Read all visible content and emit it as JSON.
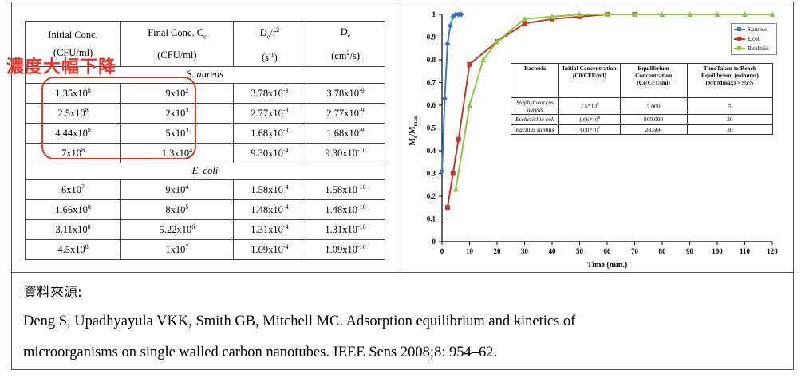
{
  "annotation": {
    "label": "濃度大幅下降",
    "color": "#e8332a"
  },
  "left_table": {
    "headers": [
      {
        "line1": "Initial Conc.",
        "line2": "(CFU/ml)"
      },
      {
        "line1": "Final Conc. C",
        "line1_sub": "e",
        "line2": "(CFU/ml)"
      },
      {
        "line1": "D",
        "line1_sub": "e",
        "line1_rest": "/r",
        "line1_sup": "2",
        "line2": "(s",
        "line2_sup": "-1",
        "line2_rest": ")"
      },
      {
        "line1": "D",
        "line1_sub": "e",
        "line2": "(cm",
        "line2_sup": "2",
        "line2_rest": "/s)"
      }
    ],
    "sections": [
      {
        "name": "S. aureus",
        "rows": [
          {
            "initial": [
              "1.35x10",
              "8"
            ],
            "final": [
              "9x10",
              "2"
            ],
            "der2": [
              "3.78x10",
              "-3"
            ],
            "de": [
              "3.78x10",
              "-9"
            ]
          },
          {
            "initial": [
              "2.5x10",
              "8"
            ],
            "final": [
              "2x10",
              "3"
            ],
            "der2": [
              "2.77x10",
              "-3"
            ],
            "de": [
              "2.77x10",
              "-9"
            ]
          },
          {
            "initial": [
              "4.44x10",
              "8"
            ],
            "final": [
              "5x10",
              "3"
            ],
            "der2": [
              "1.68x10",
              "-3"
            ],
            "de": [
              "1.68x10",
              "-9"
            ]
          },
          {
            "initial": [
              "7x10",
              "8"
            ],
            "final": [
              "1.3x10",
              "4"
            ],
            "der2": [
              "9.30x10",
              "-4"
            ],
            "de": [
              "9.30x10",
              "-10"
            ]
          }
        ]
      },
      {
        "name": "E. coli",
        "rows": [
          {
            "initial": [
              "6x10",
              "7"
            ],
            "final": [
              "9x10",
              "4"
            ],
            "der2": [
              "1.58x10",
              "-4"
            ],
            "de": [
              "1.58x10",
              "-10"
            ]
          },
          {
            "initial": [
              "1.66x10",
              "8"
            ],
            "final": [
              "8x10",
              "5"
            ],
            "der2": [
              "1.48x10",
              "-4"
            ],
            "de": [
              "1.48x10",
              "-10"
            ]
          },
          {
            "initial": [
              "3.11x10",
              "8"
            ],
            "final": [
              "5.22x10",
              "6"
            ],
            "der2": [
              "1.31x10",
              "-4"
            ],
            "de": [
              "1.31x10",
              "-10"
            ]
          },
          {
            "initial": [
              "4.5x10",
              "8"
            ],
            "final": [
              "1x10",
              "7"
            ],
            "der2": [
              "1.09x10",
              "-4"
            ],
            "de": [
              "1.09x10",
              "-10"
            ]
          }
        ]
      }
    ]
  },
  "chart_data": {
    "type": "line",
    "title": "",
    "xlabel": "Time (min.)",
    "ylabel_main": "M",
    "ylabel_sub1": "t",
    "ylabel_mid": "/M",
    "ylabel_sub2": "max",
    "xlim": [
      0,
      120
    ],
    "ylim": [
      0,
      1
    ],
    "x_ticks": [
      0,
      10,
      20,
      30,
      40,
      50,
      60,
      70,
      80,
      90,
      100,
      110,
      120
    ],
    "y_ticks": [
      0,
      0.1,
      0.2,
      0.3,
      0.4,
      0.5,
      0.6,
      0.7,
      0.8,
      0.9,
      1
    ],
    "x_tick_labels": [
      "0",
      "10",
      "20",
      "30",
      "40",
      "50",
      "60",
      "70",
      "80",
      "90",
      "100",
      "110",
      "120"
    ],
    "y_tick_labels": [
      "0",
      "0.1",
      "0.2",
      "0.3",
      "0.4",
      "0.5",
      "0.6",
      "0.7",
      "0.8",
      "0.9",
      "1"
    ],
    "legend_position": "top-right",
    "series": [
      {
        "name": "S.aureus",
        "color": "#3a78c4",
        "marker": "diamond",
        "x": [
          0,
          1,
          2,
          3,
          4,
          5,
          6,
          7
        ],
        "y": [
          0.31,
          0.63,
          0.87,
          0.95,
          0.99,
          1.0,
          1.0,
          1.0
        ]
      },
      {
        "name": "E.coli",
        "color": "#c0392b",
        "marker": "square",
        "x": [
          2,
          4,
          6,
          10,
          20,
          30,
          40,
          50,
          60,
          70
        ],
        "y": [
          0.15,
          0.3,
          0.45,
          0.78,
          0.88,
          0.96,
          0.98,
          0.99,
          1.0,
          1.0
        ]
      },
      {
        "name": "B.subtilis",
        "color": "#8dc63f",
        "marker": "triangle",
        "x": [
          5,
          10,
          15,
          20,
          30,
          40,
          50,
          60,
          70,
          80,
          90,
          100,
          110,
          120
        ],
        "y": [
          0.23,
          0.6,
          0.8,
          0.88,
          0.98,
          0.99,
          1.0,
          1.0,
          1.0,
          1.0,
          1.0,
          1.0,
          1.0,
          1.0
        ]
      }
    ]
  },
  "inner_table": {
    "headers": [
      "Bacteria",
      "Initial Concentration (C0/CFU/ml)",
      "Equilibrium Concentration (Ce/CFU/ml)",
      "TimeTaken to Reach Equilibrium (minutes) (Mt/Mmax) > 95%"
    ],
    "rows": [
      {
        "bacteria": "Staphylococcus aureus",
        "initial": [
          "2.5*10",
          "8"
        ],
        "equilibrium": "2,000",
        "time": "5"
      },
      {
        "bacteria": "Escherichia coli",
        "initial": [
          "1.66*10",
          "8"
        ],
        "equilibrium": "800,000",
        "time": "30"
      },
      {
        "bacteria": "Bacillus subtilis",
        "initial": [
          "3.00*10",
          "7"
        ],
        "equilibrium": "28,666",
        "time": "30"
      }
    ]
  },
  "source": {
    "label": "資料來源:",
    "line1": "Deng S, Upadhyayula VKK, Smith GB, Mitchell MC. Adsorption equilibrium and kinetics of",
    "line2": "microorganisms on single walled carbon nanotubes. IEEE Sens 2008;8: 954–62."
  }
}
